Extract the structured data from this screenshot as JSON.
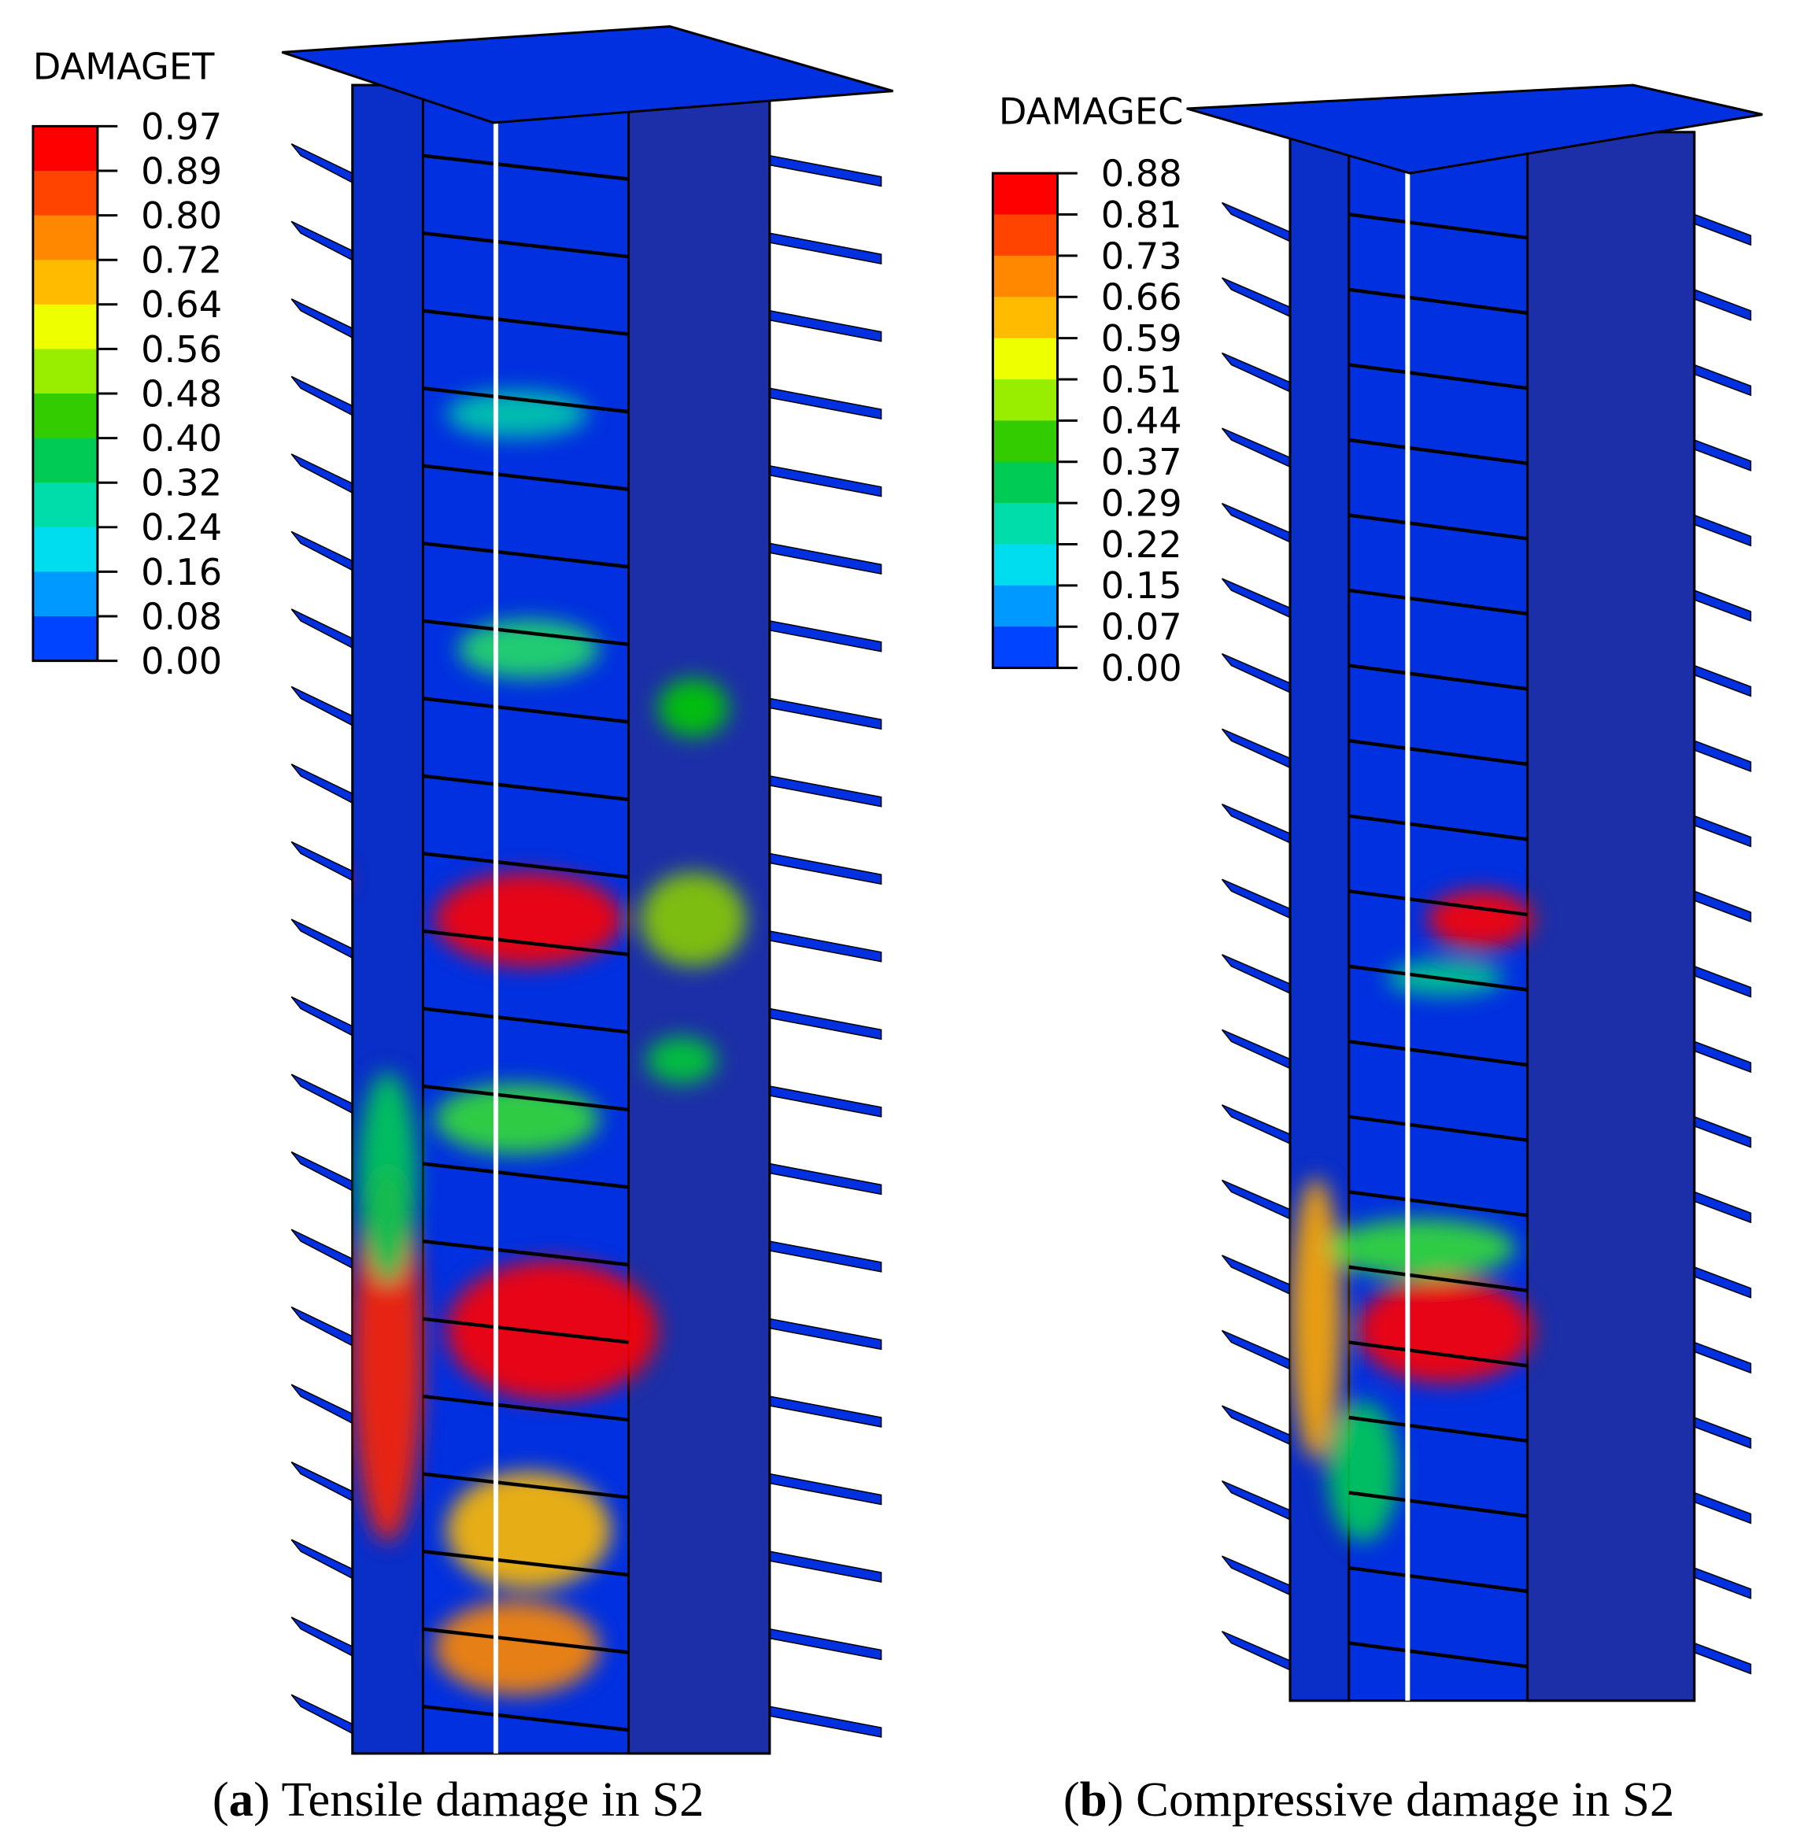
{
  "panels": [
    {
      "legend": {
        "title": "DAMAGET",
        "labels": [
          "0.97",
          "0.89",
          "0.80",
          "0.72",
          "0.64",
          "0.56",
          "0.48",
          "0.40",
          "0.32",
          "0.24",
          "0.16",
          "0.08",
          "0.00"
        ]
      },
      "caption": {
        "open": "(",
        "letter": "a",
        "text": ") Tensile damage in S2"
      }
    },
    {
      "legend": {
        "title": "DAMAGEC",
        "labels": [
          "0.88",
          "0.81",
          "0.73",
          "0.66",
          "0.59",
          "0.51",
          "0.44",
          "0.37",
          "0.29",
          "0.22",
          "0.15",
          "0.07",
          "0.00"
        ]
      },
      "caption": {
        "open": "(",
        "letter": "b",
        "text": ") Compressive damage in S2"
      }
    }
  ]
}
